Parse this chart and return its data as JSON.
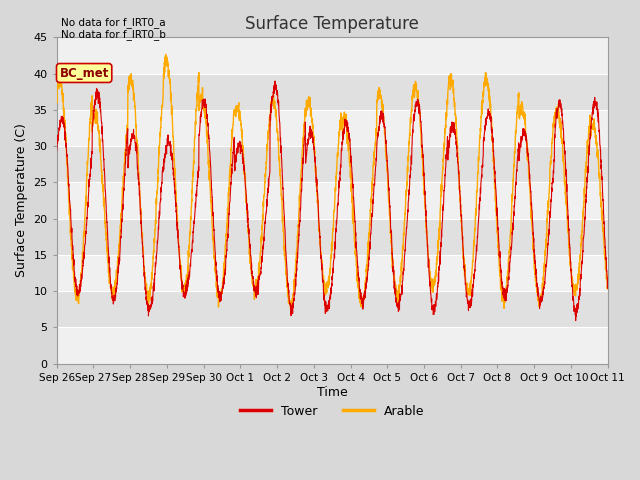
{
  "title": "Surface Temperature",
  "xlabel": "Time",
  "ylabel": "Surface Temperature (C)",
  "ylim": [
    0,
    45
  ],
  "yticks": [
    0,
    5,
    10,
    15,
    20,
    25,
    30,
    35,
    40,
    45
  ],
  "annotation_text": "No data for f_IRT0_a\nNo data for f_IRT0_b",
  "bc_met_label": "BC_met",
  "legend_entries": [
    "Tower",
    "Arable"
  ],
  "tower_color": "#dd0000",
  "arable_color": "#ffaa00",
  "bc_met_color": "#ffff99",
  "bc_met_border": "#cc0000",
  "background_color": "#d8d8d8",
  "plot_bg_color": "#e8e8e8",
  "band_color_light": "#f0f0f0",
  "band_color_dark": "#e0e0e0",
  "grid_color": "#ffffff",
  "xtick_labels": [
    "Sep 26",
    "Sep 27",
    "Sep 28",
    "Sep 29",
    "Sep 30",
    "Oct 1",
    "Oct 2",
    "Oct 3",
    "Oct 4",
    "Oct 5",
    "Oct 6",
    "Oct 7",
    "Oct 8",
    "Oct 9",
    "Oct 10",
    "Oct 11"
  ],
  "n_days": 15.5,
  "n_points": 3100,
  "tower_seed": 42,
  "arable_seed": 123
}
